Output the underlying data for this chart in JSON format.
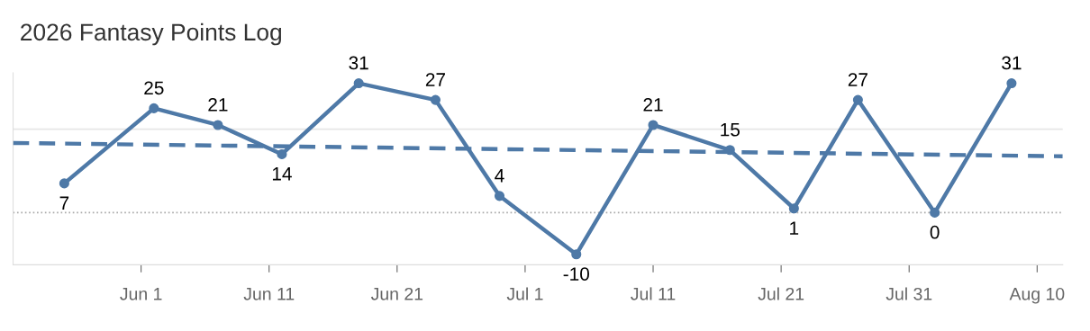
{
  "chart_data": {
    "type": "line",
    "title": "2026 Fantasy Points Log",
    "x": [
      "2026-05-26",
      "2026-06-02",
      "2026-06-07",
      "2026-06-12",
      "2026-06-18",
      "2026-06-24",
      "2026-06-29",
      "2026-07-05",
      "2026-07-11",
      "2026-07-17",
      "2026-07-22",
      "2026-07-27",
      "2026-08-02",
      "2026-08-08"
    ],
    "series": [
      {
        "color": "#4e79a7",
        "values": [
          7,
          25,
          21,
          14,
          31,
          27,
          4,
          -10,
          21,
          15,
          1,
          27,
          0,
          31
        ],
        "value_labels": [
          "7",
          "25",
          "21",
          "14",
          "31",
          "27",
          "4",
          "-10",
          "21",
          "15",
          "1",
          "27",
          "0",
          "31"
        ],
        "marker": "circle",
        "line_style": "solid"
      },
      {
        "type": "line",
        "color": "#4e79a7",
        "x": [
          "2026-05-22",
          "2026-08-12"
        ],
        "values": [
          16.7,
          13.5
        ],
        "marker": "none",
        "line_style": "dashed"
      }
    ],
    "xlim": [
      "2026-05-22",
      "2026-08-12"
    ],
    "xticks": [
      {
        "value": "2026-06-01",
        "label": "Jun 1"
      },
      {
        "value": "2026-06-11",
        "label": "Jun 11"
      },
      {
        "value": "2026-06-21",
        "label": "Jun 21"
      },
      {
        "value": "2026-07-01",
        "label": "Jul 1"
      },
      {
        "value": "2026-07-11",
        "label": "Jul 11"
      },
      {
        "value": "2026-07-21",
        "label": "Jul 21"
      },
      {
        "value": "2026-07-31",
        "label": "Jul 31"
      },
      {
        "value": "2026-08-10",
        "label": "Aug 10"
      }
    ],
    "ylim": [
      -12.5,
      33.5
    ],
    "ref_lines": [
      {
        "axis": "y",
        "value": 0,
        "label": null,
        "color": "#aaaaaa",
        "line_style": "dotted"
      },
      {
        "axis": "y",
        "value": 20,
        "label": null,
        "color": "#e6e6e6",
        "line_style": "solid"
      }
    ],
    "tick_labels": "x",
    "legend": false
  }
}
